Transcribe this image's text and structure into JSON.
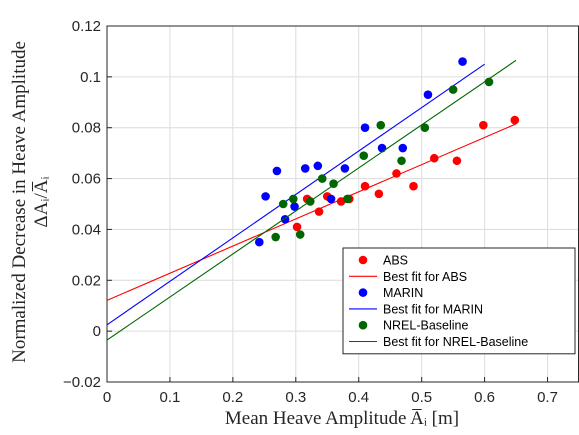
{
  "chart_data": {
    "type": "scatter",
    "xlabel": "Mean Heave Amplitude A̅ᵢ [m]",
    "ylabel_line1": "Normalized Decrease in Heave Amplitude",
    "ylabel_line2": "ΔAᵢ/A̅ᵢ",
    "xlim": [
      0,
      0.75
    ],
    "ylim": [
      -0.02,
      0.12
    ],
    "x_ticks": [
      0,
      0.1,
      0.2,
      0.3,
      0.4,
      0.5,
      0.6,
      0.7
    ],
    "y_ticks": [
      -0.02,
      0,
      0.02,
      0.04,
      0.06,
      0.08,
      0.1,
      0.12
    ],
    "x_tick_labels": [
      "0",
      "0.1",
      "0.2",
      "0.3",
      "0.4",
      "0.5",
      "0.6",
      "0.7"
    ],
    "y_tick_labels": [
      "−0.02",
      "0",
      "0.02",
      "0.04",
      "0.06",
      "0.08",
      "0.1",
      "0.12"
    ],
    "grid": true,
    "legend_position": "bottom-right",
    "series": [
      {
        "name": "ABS",
        "color": "#ff0000",
        "points": [
          [
            0.302,
            0.041
          ],
          [
            0.318,
            0.052
          ],
          [
            0.337,
            0.047
          ],
          [
            0.35,
            0.053
          ],
          [
            0.372,
            0.051
          ],
          [
            0.385,
            0.052
          ],
          [
            0.41,
            0.057
          ],
          [
            0.432,
            0.054
          ],
          [
            0.46,
            0.062
          ],
          [
            0.487,
            0.057
          ],
          [
            0.52,
            0.068
          ],
          [
            0.556,
            0.067
          ],
          [
            0.598,
            0.081
          ],
          [
            0.648,
            0.083
          ]
        ]
      },
      {
        "name": "Best fit for ABS",
        "color": "#ff0000",
        "line": [
          [
            0,
            0.0121
          ],
          [
            0.65,
            0.0815
          ]
        ]
      },
      {
        "name": "MARIN",
        "color": "#0000ff",
        "points": [
          [
            0.242,
            0.035
          ],
          [
            0.252,
            0.053
          ],
          [
            0.27,
            0.063
          ],
          [
            0.283,
            0.044
          ],
          [
            0.298,
            0.049
          ],
          [
            0.315,
            0.064
          ],
          [
            0.335,
            0.065
          ],
          [
            0.356,
            0.052
          ],
          [
            0.378,
            0.064
          ],
          [
            0.41,
            0.08
          ],
          [
            0.437,
            0.072
          ],
          [
            0.47,
            0.072
          ],
          [
            0.51,
            0.093
          ],
          [
            0.565,
            0.106
          ]
        ]
      },
      {
        "name": "Best fit for MARIN",
        "color": "#0000ff",
        "line": [
          [
            0,
            0.0025
          ],
          [
            0.6,
            0.105
          ]
        ]
      },
      {
        "name": "NREL-Baseline",
        "color": "#006600",
        "points": [
          [
            0.268,
            0.037
          ],
          [
            0.28,
            0.05
          ],
          [
            0.296,
            0.052
          ],
          [
            0.307,
            0.038
          ],
          [
            0.323,
            0.051
          ],
          [
            0.342,
            0.06
          ],
          [
            0.36,
            0.058
          ],
          [
            0.382,
            0.052
          ],
          [
            0.408,
            0.069
          ],
          [
            0.435,
            0.081
          ],
          [
            0.468,
            0.067
          ],
          [
            0.505,
            0.08
          ],
          [
            0.55,
            0.095
          ],
          [
            0.607,
            0.098
          ]
        ]
      },
      {
        "name": "Best fit for NREL-Baseline",
        "color": "#006600",
        "line": [
          [
            0,
            -0.0035
          ],
          [
            0.65,
            0.1065
          ]
        ]
      }
    ]
  }
}
